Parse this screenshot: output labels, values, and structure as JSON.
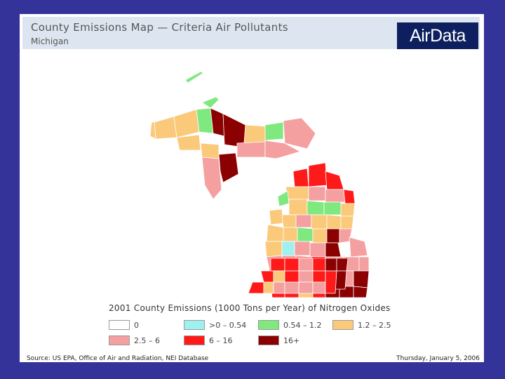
{
  "header": {
    "title": "County Emissions Map — Criteria Air Pollutants",
    "subtitle": "Michigan",
    "brand": "AirData"
  },
  "map": {
    "region": "Michigan",
    "colors": {
      "no_data": "#ffffff",
      "very_low": "#9ff0f0",
      "low": "#7fe87f",
      "low_mid": "#fbc97a",
      "mid": "#f5a0a0",
      "high": "#ff1a1a",
      "very_high": "#8b0000"
    }
  },
  "legend": {
    "title": "2001 County Emissions (1000 Tons per Year) of Nitrogen Oxides",
    "items": [
      {
        "label": "0",
        "color": "#ffffff"
      },
      {
        "label": ">0 – 0.54",
        "color": "#9ff0f0"
      },
      {
        "label": "0.54 – 1.2",
        "color": "#7fe87f"
      },
      {
        "label": "1.2 – 2.5",
        "color": "#fbc97a"
      },
      {
        "label": "2.5 – 6",
        "color": "#f5a0a0"
      },
      {
        "label": "6 – 16",
        "color": "#ff1a1a"
      },
      {
        "label": "16+",
        "color": "#8b0000"
      }
    ]
  },
  "footer": {
    "source": "Source: US EPA, Office of Air and Radiation, NEI Database",
    "date": "Thursday, January 5, 2006"
  }
}
